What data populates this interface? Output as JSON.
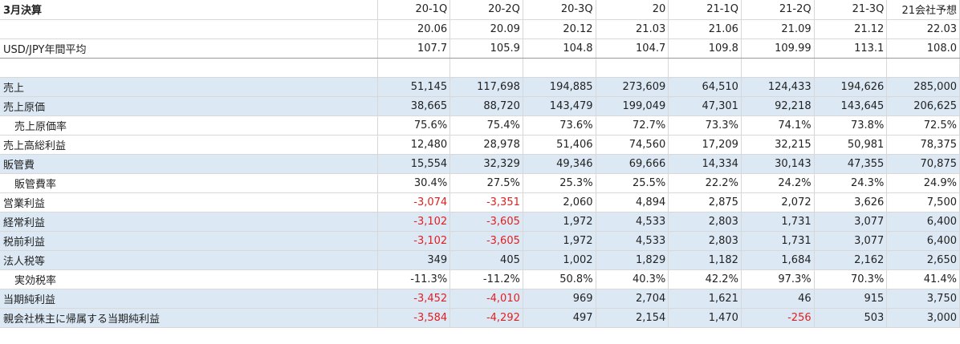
{
  "header": {
    "title": "3月決算",
    "periods": [
      "20-1Q",
      "20-2Q",
      "20-3Q",
      "20",
      "21-1Q",
      "21-2Q",
      "21-3Q",
      "21会社予想"
    ],
    "dates": [
      "20.06",
      "20.09",
      "20.12",
      "21.03",
      "21.06",
      "21.09",
      "21.12",
      "22.03"
    ]
  },
  "usd": {
    "label": "USD/JPY年間平均",
    "values": [
      "107.7",
      "105.9",
      "104.8",
      "104.7",
      "109.8",
      "109.99",
      "113.1",
      "108.0"
    ]
  },
  "rows": [
    {
      "label": "売上",
      "hl": true,
      "values": [
        "51,145",
        "117,698",
        "194,885",
        "273,609",
        "64,510",
        "124,433",
        "194,626",
        "285,000"
      ]
    },
    {
      "label": "売上原価",
      "hl": true,
      "values": [
        "38,665",
        "88,720",
        "143,479",
        "199,049",
        "47,301",
        "92,218",
        "143,645",
        "206,625"
      ]
    },
    {
      "label": "売上原価率",
      "sub": true,
      "values": [
        "75.6%",
        "75.4%",
        "73.6%",
        "72.7%",
        "73.3%",
        "74.1%",
        "73.8%",
        "72.5%"
      ]
    },
    {
      "label": "売上高総利益",
      "values": [
        "12,480",
        "28,978",
        "51,406",
        "74,560",
        "17,209",
        "32,215",
        "50,981",
        "78,375"
      ]
    },
    {
      "label": "販管費",
      "hl": true,
      "values": [
        "15,554",
        "32,329",
        "49,346",
        "69,666",
        "14,334",
        "30,143",
        "47,355",
        "70,875"
      ]
    },
    {
      "label": "販管費率",
      "sub": true,
      "values": [
        "30.4%",
        "27.5%",
        "25.3%",
        "25.5%",
        "22.2%",
        "24.2%",
        "24.3%",
        "24.9%"
      ]
    },
    {
      "label": "営業利益",
      "values": [
        "-3,074",
        "-3,351",
        "2,060",
        "4,894",
        "2,875",
        "2,072",
        "3,626",
        "7,500"
      ]
    },
    {
      "label": "経常利益",
      "hl": true,
      "values": [
        "-3,102",
        "-3,605",
        "1,972",
        "4,533",
        "2,803",
        "1,731",
        "3,077",
        "6,400"
      ]
    },
    {
      "label": "税前利益",
      "hl": true,
      "values": [
        "-3,102",
        "-3,605",
        "1,972",
        "4,533",
        "2,803",
        "1,731",
        "3,077",
        "6,400"
      ]
    },
    {
      "label": "法人税等",
      "hl": true,
      "values": [
        "349",
        "405",
        "1,002",
        "1,829",
        "1,182",
        "1,684",
        "2,162",
        "2,650"
      ]
    },
    {
      "label": "実効税率",
      "sub": true,
      "values": [
        "-11.3%",
        "-11.2%",
        "50.8%",
        "40.3%",
        "42.2%",
        "97.3%",
        "70.3%",
        "41.4%"
      ]
    },
    {
      "label": "当期純利益",
      "hl": true,
      "values": [
        "-3,452",
        "-4,010",
        "969",
        "2,704",
        "1,621",
        "46",
        "915",
        "3,750"
      ]
    },
    {
      "label": "親会社株主に帰属する当期純利益",
      "hl": true,
      "values": [
        "-3,584",
        "-4,292",
        "497",
        "2,154",
        "1,470",
        "-256",
        "503",
        "3,000"
      ]
    }
  ],
  "colors": {
    "highlight": "#dce9f5",
    "negative": "#e02020"
  }
}
